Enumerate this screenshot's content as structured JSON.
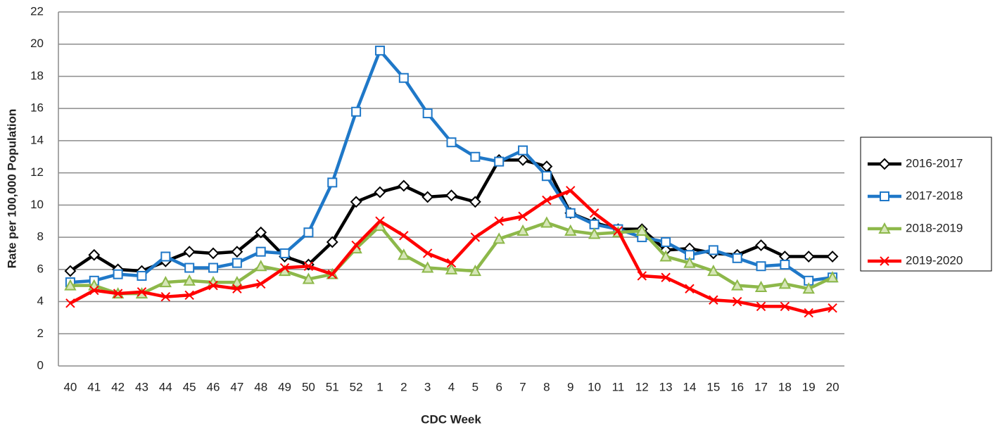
{
  "chart_data": {
    "type": "line",
    "x_label": "CDC Week",
    "y_label": "Rate per 100,000 Population",
    "categories": [
      "40",
      "41",
      "42",
      "43",
      "44",
      "45",
      "46",
      "47",
      "48",
      "49",
      "50",
      "51",
      "52",
      "1",
      "2",
      "3",
      "4",
      "5",
      "6",
      "7",
      "8",
      "9",
      "10",
      "11",
      "12",
      "13",
      "14",
      "15",
      "16",
      "17",
      "18",
      "19",
      "20"
    ],
    "ylim": [
      0,
      22
    ],
    "yticks": [
      0,
      2,
      4,
      6,
      8,
      10,
      12,
      14,
      16,
      18,
      20,
      22
    ],
    "grid": true,
    "legend": "right",
    "series": [
      {
        "name": "2016-2017",
        "color": "#000000",
        "marker": "diamond",
        "values": [
          5.9,
          6.9,
          6.0,
          5.9,
          6.5,
          7.1,
          7.0,
          7.1,
          8.3,
          6.8,
          6.3,
          7.7,
          10.2,
          10.8,
          11.2,
          10.5,
          10.6,
          10.2,
          12.8,
          12.8,
          12.4,
          9.5,
          8.9,
          8.5,
          8.5,
          7.2,
          7.3,
          7.0,
          6.9,
          7.5,
          6.8,
          6.8,
          6.8
        ]
      },
      {
        "name": "2017-2018",
        "color": "#1f78c8",
        "marker": "square",
        "values": [
          5.2,
          5.3,
          5.7,
          5.6,
          6.8,
          6.1,
          6.1,
          6.4,
          7.1,
          7.0,
          8.3,
          11.4,
          15.8,
          19.6,
          17.9,
          15.7,
          13.9,
          13.0,
          12.7,
          13.4,
          11.8,
          9.5,
          8.8,
          8.5,
          8.0,
          7.7,
          6.9,
          7.2,
          6.7,
          6.2,
          6.3,
          5.3,
          5.5
        ]
      },
      {
        "name": "2018-2019",
        "color": "#8db84a",
        "marker": "triangle",
        "values": [
          5.0,
          5.0,
          4.5,
          4.5,
          5.2,
          5.3,
          5.2,
          5.2,
          6.2,
          5.9,
          5.4,
          5.7,
          7.3,
          8.7,
          6.9,
          6.1,
          6.0,
          5.9,
          7.9,
          8.4,
          8.9,
          8.4,
          8.2,
          8.3,
          8.4,
          6.8,
          6.4,
          5.9,
          5.0,
          4.9,
          5.1,
          4.8,
          5.5
        ]
      },
      {
        "name": "2019-2020",
        "color": "#ff0000",
        "marker": "x",
        "values": [
          3.9,
          4.7,
          4.5,
          4.6,
          4.3,
          4.4,
          5.0,
          4.8,
          5.1,
          6.1,
          6.2,
          5.7,
          7.5,
          9.0,
          8.1,
          7.0,
          6.4,
          8.0,
          9.0,
          9.3,
          10.3,
          10.9,
          9.5,
          8.4,
          5.6,
          5.5,
          4.8,
          4.1,
          4.0,
          3.7,
          3.7,
          3.3,
          3.6
        ]
      }
    ]
  }
}
